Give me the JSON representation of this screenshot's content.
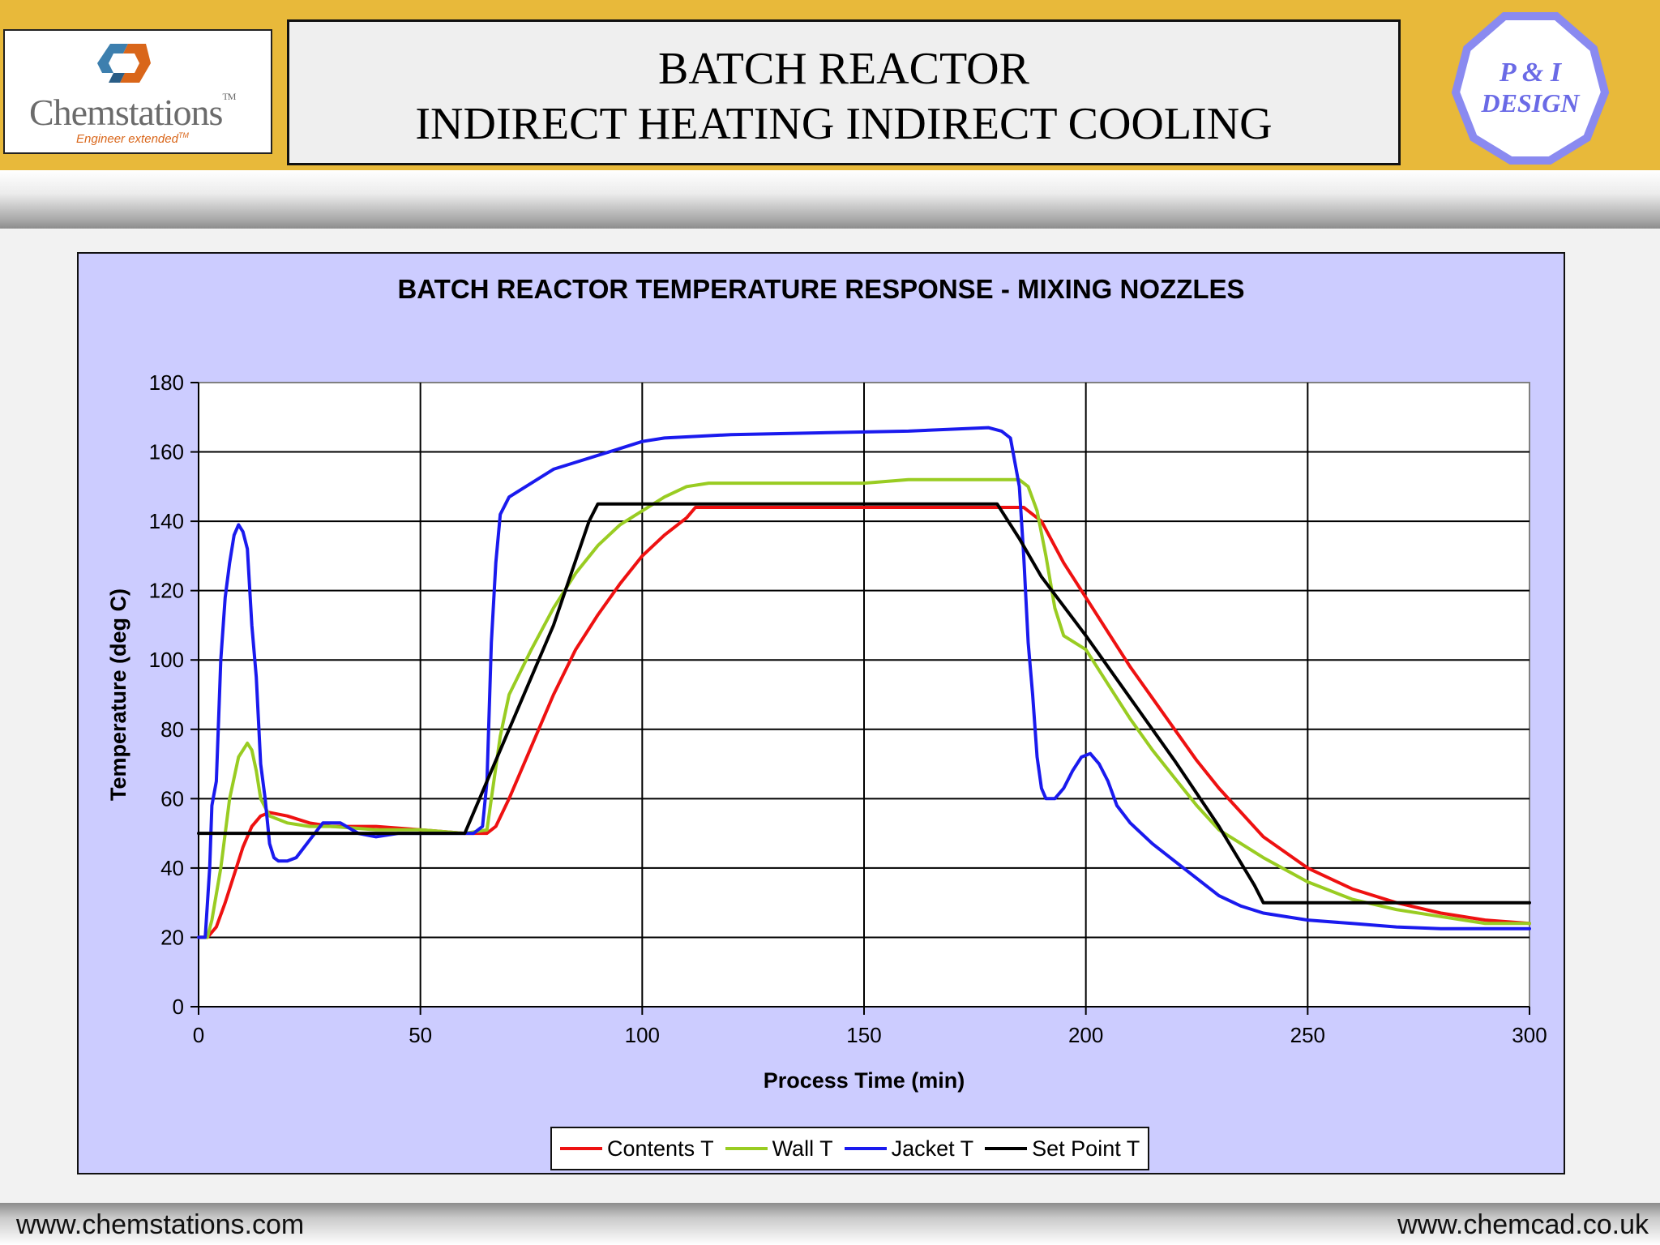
{
  "header": {
    "title_line1": "BATCH REACTOR",
    "title_line2": "INDIRECT HEATING INDIRECT COOLING",
    "logo_left": {
      "brand": "Chemstations",
      "tm": "TM",
      "tagline": "Engineer extended",
      "tagline_tm": "TM"
    },
    "logo_right": {
      "line1": "P & I",
      "line2": "DESIGN"
    }
  },
  "footer": {
    "left": "www.chemstations.com",
    "right": "www.chemcad.co.uk"
  },
  "colors": {
    "header_bg": "#e8b93a",
    "chart_bg": "#ccccff",
    "contents": "#ee1111",
    "wall": "#99cc22",
    "jacket": "#1a1aee",
    "setpoint": "#000000"
  },
  "chart_data": {
    "type": "line",
    "title": "BATCH REACTOR TEMPERATURE RESPONSE - MIXING NOZZLES",
    "xlabel": "Process Time (min)",
    "ylabel": "Temperature (deg C)",
    "xlim": [
      0,
      300
    ],
    "ylim": [
      0,
      180
    ],
    "xticks": [
      0,
      50,
      100,
      150,
      200,
      250,
      300
    ],
    "yticks": [
      0,
      20,
      40,
      60,
      80,
      100,
      120,
      140,
      160,
      180
    ],
    "grid": true,
    "legend_position": "bottom",
    "series": [
      {
        "name": "Contents T",
        "color": "#ee1111",
        "points": [
          [
            0,
            20
          ],
          [
            2,
            20
          ],
          [
            4,
            23
          ],
          [
            6,
            30
          ],
          [
            8,
            38
          ],
          [
            10,
            46
          ],
          [
            12,
            52
          ],
          [
            14,
            55
          ],
          [
            16,
            56
          ],
          [
            20,
            55
          ],
          [
            25,
            53
          ],
          [
            30,
            52
          ],
          [
            40,
            52
          ],
          [
            50,
            51
          ],
          [
            60,
            50
          ],
          [
            65,
            50
          ],
          [
            67,
            52
          ],
          [
            70,
            60
          ],
          [
            75,
            75
          ],
          [
            80,
            90
          ],
          [
            85,
            103
          ],
          [
            90,
            113
          ],
          [
            95,
            122
          ],
          [
            100,
            130
          ],
          [
            105,
            136
          ],
          [
            110,
            141
          ],
          [
            112,
            144
          ],
          [
            150,
            144
          ],
          [
            186,
            144
          ],
          [
            190,
            140
          ],
          [
            195,
            128
          ],
          [
            200,
            118
          ],
          [
            205,
            108
          ],
          [
            210,
            98
          ],
          [
            215,
            89
          ],
          [
            220,
            80
          ],
          [
            225,
            71
          ],
          [
            230,
            63
          ],
          [
            235,
            56
          ],
          [
            240,
            49
          ],
          [
            250,
            40
          ],
          [
            260,
            34
          ],
          [
            270,
            30
          ],
          [
            280,
            27
          ],
          [
            290,
            25
          ],
          [
            300,
            24
          ]
        ]
      },
      {
        "name": "Wall T",
        "color": "#99cc22",
        "points": [
          [
            0,
            20
          ],
          [
            2,
            20
          ],
          [
            3,
            25
          ],
          [
            5,
            40
          ],
          [
            7,
            60
          ],
          [
            9,
            72
          ],
          [
            11,
            76
          ],
          [
            12,
            74
          ],
          [
            13,
            68
          ],
          [
            14,
            60
          ],
          [
            16,
            55
          ],
          [
            20,
            53
          ],
          [
            25,
            52
          ],
          [
            30,
            52
          ],
          [
            40,
            51
          ],
          [
            50,
            51
          ],
          [
            60,
            50
          ],
          [
            65,
            51
          ],
          [
            66,
            60
          ],
          [
            68,
            78
          ],
          [
            70,
            90
          ],
          [
            75,
            103
          ],
          [
            80,
            115
          ],
          [
            85,
            125
          ],
          [
            90,
            133
          ],
          [
            95,
            139
          ],
          [
            100,
            143
          ],
          [
            105,
            147
          ],
          [
            110,
            150
          ],
          [
            115,
            151
          ],
          [
            150,
            151
          ],
          [
            160,
            152
          ],
          [
            185,
            152
          ],
          [
            187,
            150
          ],
          [
            189,
            143
          ],
          [
            191,
            130
          ],
          [
            193,
            115
          ],
          [
            195,
            107
          ],
          [
            200,
            103
          ],
          [
            205,
            93
          ],
          [
            210,
            83
          ],
          [
            215,
            74
          ],
          [
            220,
            66
          ],
          [
            225,
            58
          ],
          [
            230,
            51
          ],
          [
            240,
            43
          ],
          [
            250,
            36
          ],
          [
            260,
            31
          ],
          [
            270,
            28
          ],
          [
            280,
            26
          ],
          [
            290,
            24
          ],
          [
            300,
            24
          ]
        ]
      },
      {
        "name": "Jacket T",
        "color": "#1a1aee",
        "points": [
          [
            0,
            20
          ],
          [
            1.5,
            20
          ],
          [
            2.5,
            40
          ],
          [
            3,
            58
          ],
          [
            4,
            65
          ],
          [
            5,
            100
          ],
          [
            6,
            118
          ],
          [
            7,
            128
          ],
          [
            8,
            136
          ],
          [
            9,
            139
          ],
          [
            10,
            137
          ],
          [
            11,
            132
          ],
          [
            12,
            110
          ],
          [
            13,
            95
          ],
          [
            14,
            70
          ],
          [
            15,
            60
          ],
          [
            16,
            47
          ],
          [
            17,
            43
          ],
          [
            18,
            42
          ],
          [
            20,
            42
          ],
          [
            22,
            43
          ],
          [
            25,
            48
          ],
          [
            28,
            53
          ],
          [
            32,
            53
          ],
          [
            36,
            50
          ],
          [
            40,
            49
          ],
          [
            45,
            50
          ],
          [
            50,
            50
          ],
          [
            62,
            50
          ],
          [
            64,
            52
          ],
          [
            65,
            65
          ],
          [
            66,
            105
          ],
          [
            67,
            128
          ],
          [
            68,
            142
          ],
          [
            70,
            147
          ],
          [
            75,
            151
          ],
          [
            80,
            155
          ],
          [
            85,
            157
          ],
          [
            90,
            159
          ],
          [
            95,
            161
          ],
          [
            100,
            163
          ],
          [
            105,
            164
          ],
          [
            120,
            165
          ],
          [
            140,
            165.5
          ],
          [
            160,
            166
          ],
          [
            178,
            167
          ],
          [
            181,
            166
          ],
          [
            183,
            164
          ],
          [
            185,
            150
          ],
          [
            186,
            130
          ],
          [
            187,
            105
          ],
          [
            188,
            90
          ],
          [
            189,
            72
          ],
          [
            190,
            63
          ],
          [
            191,
            60
          ],
          [
            193,
            60
          ],
          [
            195,
            63
          ],
          [
            197,
            68
          ],
          [
            199,
            72
          ],
          [
            201,
            73
          ],
          [
            203,
            70
          ],
          [
            205,
            65
          ],
          [
            207,
            58
          ],
          [
            210,
            53
          ],
          [
            215,
            47
          ],
          [
            220,
            42
          ],
          [
            225,
            37
          ],
          [
            230,
            32
          ],
          [
            235,
            29
          ],
          [
            240,
            27
          ],
          [
            250,
            25
          ],
          [
            260,
            24
          ],
          [
            270,
            23
          ],
          [
            280,
            22.5
          ],
          [
            300,
            22.5
          ]
        ]
      },
      {
        "name": "Set Point T",
        "color": "#000000",
        "points": [
          [
            0,
            50
          ],
          [
            60,
            50
          ],
          [
            70,
            80
          ],
          [
            80,
            110
          ],
          [
            88,
            140
          ],
          [
            90,
            145
          ],
          [
            180,
            145
          ],
          [
            185,
            135
          ],
          [
            190,
            124
          ],
          [
            200,
            107
          ],
          [
            210,
            89
          ],
          [
            220,
            71
          ],
          [
            230,
            52
          ],
          [
            238,
            35
          ],
          [
            240,
            30
          ],
          [
            300,
            30
          ]
        ]
      }
    ]
  }
}
